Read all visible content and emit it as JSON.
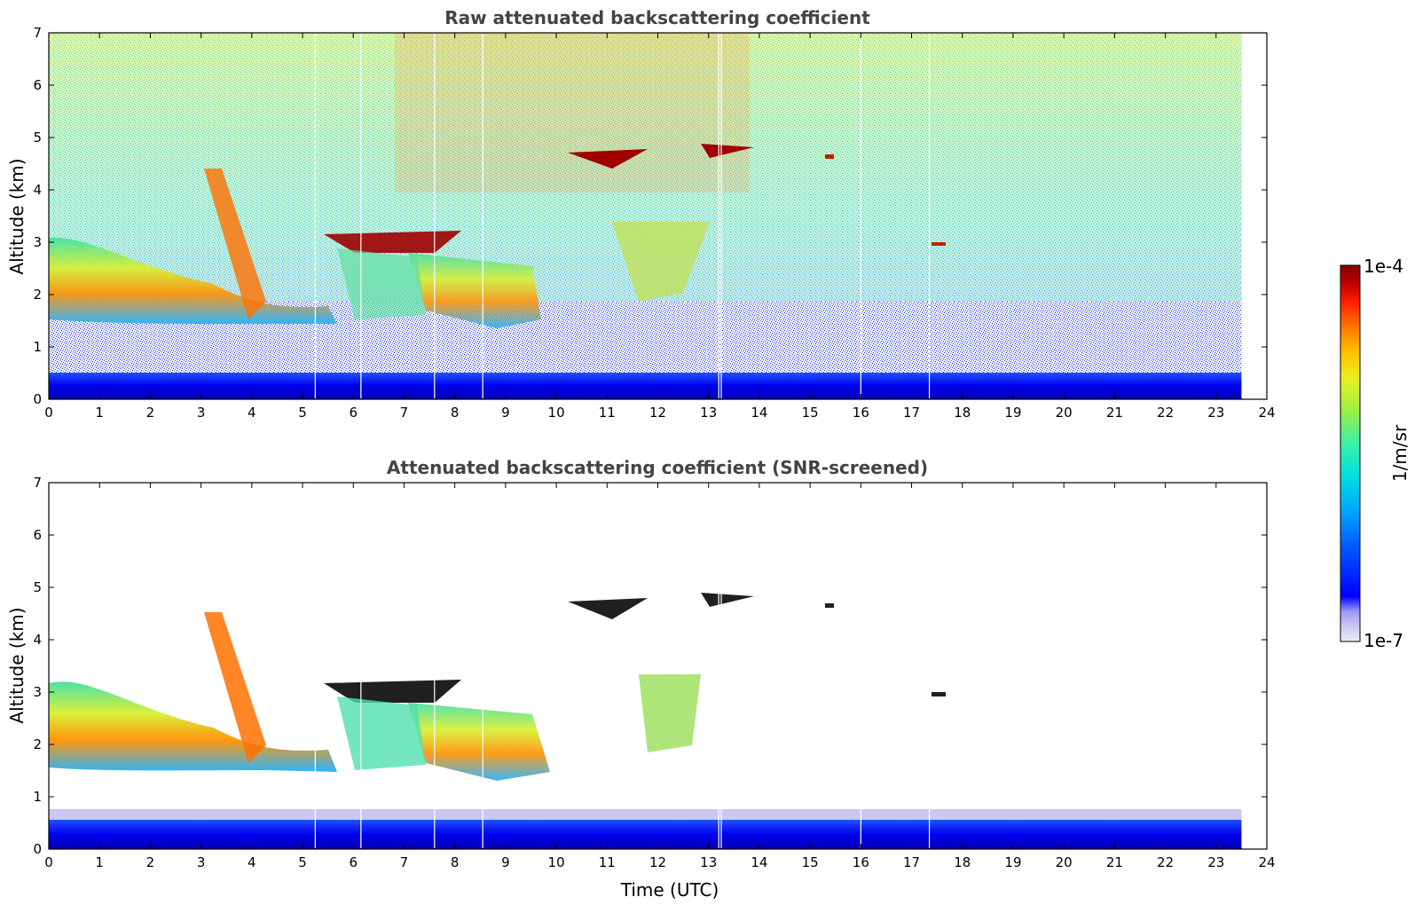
{
  "chart_data": [
    {
      "type": "heatmap",
      "title": "Raw attenuated backscattering coefficient",
      "xlabel": "",
      "ylabel": "Altitude (km)",
      "xlim": [
        0,
        24
      ],
      "ylim": [
        0,
        7
      ],
      "x_ticks": [
        "0",
        "1",
        "2",
        "3",
        "4",
        "5",
        "6",
        "7",
        "8",
        "9",
        "10",
        "11",
        "12",
        "13",
        "14",
        "15",
        "16",
        "17",
        "18",
        "19",
        "20",
        "21",
        "22",
        "23",
        "24"
      ],
      "y_ticks": [
        "0",
        "1",
        "2",
        "3",
        "4",
        "5",
        "6",
        "7"
      ],
      "data_extent_hours": [
        0,
        23.5
      ],
      "data_gaps_hours": [
        5.25,
        6.15,
        7.6,
        8.55,
        13.2,
        13.25,
        16.0,
        17.35
      ],
      "screened": false
    },
    {
      "type": "heatmap",
      "title": "Attenuated backscattering coefficient (SNR-screened)",
      "xlabel": "Time (UTC)",
      "ylabel": "Altitude (km)",
      "xlim": [
        0,
        24
      ],
      "ylim": [
        0,
        7
      ],
      "x_ticks": [
        "0",
        "1",
        "2",
        "3",
        "4",
        "5",
        "6",
        "7",
        "8",
        "9",
        "10",
        "11",
        "12",
        "13",
        "14",
        "15",
        "16",
        "17",
        "18",
        "19",
        "20",
        "21",
        "22",
        "23",
        "24"
      ],
      "y_ticks": [
        "0",
        "1",
        "2",
        "3",
        "4",
        "5",
        "6",
        "7"
      ],
      "data_extent_hours": [
        0,
        23.5
      ],
      "data_gaps_hours": [
        5.25,
        6.15,
        7.6,
        8.55,
        13.2,
        13.25,
        16.0,
        17.35
      ],
      "screened": true
    }
  ],
  "colorbar": {
    "label": "1/m/sr",
    "max_label": "1e-4",
    "min_label": "1e-7",
    "min_value": 1e-07,
    "max_value": 0.0001,
    "scale": "log",
    "colors": [
      "#e8e8f8",
      "#c8c8f0",
      "#9a9af0",
      "#0000ff",
      "#0050ff",
      "#00a0ff",
      "#00e0e0",
      "#40f0a0",
      "#a0f040",
      "#e8f020",
      "#ffc000",
      "#ff7000",
      "#ff2000",
      "#c00000",
      "#800000"
    ]
  }
}
